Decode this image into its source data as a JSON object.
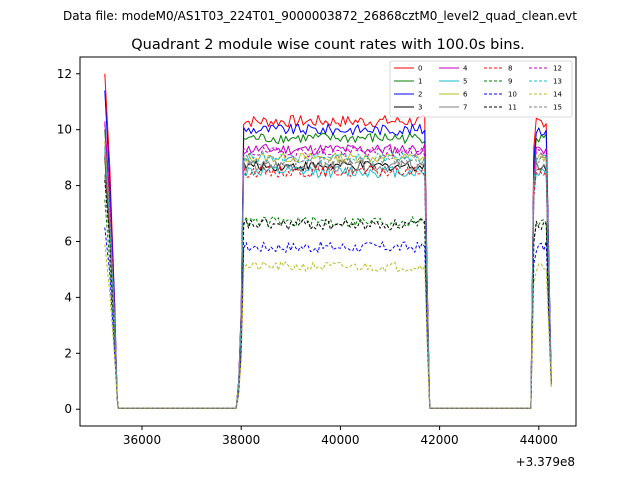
{
  "chart_data": {
    "type": "line",
    "supertitle": "Data file: modeM0/AS1T03_224T01_9000003872_26868cztM0_level2_quad_clean.evt",
    "title": "Quadrant 2 module wise count rates with 100.0s bins.",
    "xlabel": "",
    "ylabel": "",
    "x_offset_label": "+3.379e8",
    "xlim": [
      34750,
      44750
    ],
    "ylim": [
      -0.6,
      12.6
    ],
    "xticks": [
      36000,
      38000,
      40000,
      42000,
      44000
    ],
    "xtick_labels": [
      "36000",
      "38000",
      "40000",
      "42000",
      "44000"
    ],
    "yticks": [
      0,
      2,
      4,
      6,
      8,
      10,
      12
    ],
    "ytick_labels": [
      "0",
      "2",
      "4",
      "6",
      "8",
      "10",
      "12"
    ],
    "gaps": [
      [
        35520,
        37900
      ],
      [
        41800,
        43840
      ]
    ],
    "x_ranges": [
      [
        35250,
        35500,
        100
      ],
      [
        37900,
        41800,
        100
      ],
      [
        43840,
        44250,
        100
      ]
    ],
    "legend_position": "upper right",
    "series": [
      {
        "name": "0",
        "color": "#ff0000",
        "style": "solid",
        "level": 10.3,
        "start": 12.0,
        "end": 0.9,
        "amp": 0.22
      },
      {
        "name": "1",
        "color": "#008000",
        "style": "solid",
        "level": 9.7,
        "start": 10.0,
        "end": 1.0,
        "amp": 0.2
      },
      {
        "name": "2",
        "color": "#0000ff",
        "style": "solid",
        "level": 10.0,
        "start": 11.4,
        "end": 1.2,
        "amp": 0.2
      },
      {
        "name": "3",
        "color": "#000000",
        "style": "solid",
        "level": 8.7,
        "start": 9.0,
        "end": 0.9,
        "amp": 0.18
      },
      {
        "name": "4",
        "color": "#bf00bf",
        "style": "solid",
        "level": 9.3,
        "start": 10.3,
        "end": 1.0,
        "amp": 0.2
      },
      {
        "name": "5",
        "color": "#17becf",
        "style": "solid",
        "level": 8.5,
        "start": 9.2,
        "end": 0.9,
        "amp": 0.22
      },
      {
        "name": "6",
        "color": "#bcbd22",
        "style": "solid",
        "level": 9.0,
        "start": 9.6,
        "end": 0.8,
        "amp": 0.18
      },
      {
        "name": "7",
        "color": "#808080",
        "style": "solid",
        "level": 8.7,
        "start": 8.4,
        "end": 0.9,
        "amp": 0.22
      },
      {
        "name": "8",
        "color": "#ff0000",
        "style": "dashed",
        "level": 8.5,
        "start": 9.1,
        "end": 0.9,
        "amp": 0.2
      },
      {
        "name": "9",
        "color": "#008000",
        "style": "dashed",
        "level": 6.7,
        "start": 7.5,
        "end": 0.9,
        "amp": 0.2
      },
      {
        "name": "10",
        "color": "#0000ff",
        "style": "dashed",
        "level": 5.8,
        "start": 6.5,
        "end": 0.9,
        "amp": 0.2
      },
      {
        "name": "11",
        "color": "#000000",
        "style": "dashed",
        "level": 6.6,
        "start": 8.2,
        "end": 0.9,
        "amp": 0.2
      },
      {
        "name": "12",
        "color": "#bf00bf",
        "style": "dashed",
        "level": 9.2,
        "start": 10.2,
        "end": 0.9,
        "amp": 0.18
      },
      {
        "name": "13",
        "color": "#17becf",
        "style": "dashed",
        "level": 9.0,
        "start": 9.3,
        "end": 0.9,
        "amp": 0.18
      },
      {
        "name": "14",
        "color": "#bcbd22",
        "style": "dashed",
        "level": 5.1,
        "start": 5.9,
        "end": 0.8,
        "amp": 0.18
      },
      {
        "name": "15",
        "color": "#808080",
        "style": "dashed",
        "level": 8.9,
        "start": 9.4,
        "end": 0.9,
        "amp": 0.18
      }
    ]
  }
}
